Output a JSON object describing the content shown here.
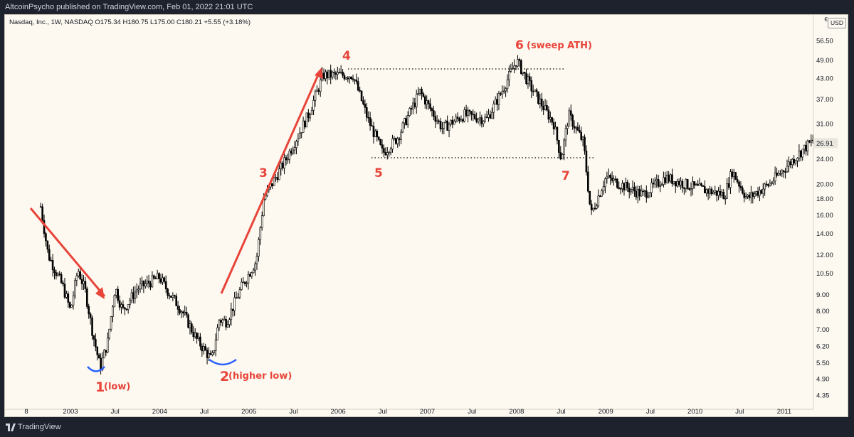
{
  "header": {
    "published": "AltcoinPsycho published on TradingView.com, Feb 01, 2022 21:01 UTC"
  },
  "legend": {
    "text": "Nasdaq, Inc., 1W, NASDAQ  O175.34  H180.75  L175.00  C180.21  +5.55 (+3.18%)"
  },
  "price_axis": {
    "currency": "USD",
    "top_mark": "€",
    "ticks": [
      "56.50",
      "49.00",
      "43.00",
      "37.00",
      "31.00",
      "26.91",
      "24.00",
      "20.00",
      "18.00",
      "16.00",
      "14.00",
      "12.00",
      "10.50",
      "9.00",
      "8.00",
      "7.00",
      "6.20",
      "5.50",
      "4.90",
      "4.35"
    ],
    "last_price": "26.91"
  },
  "time_axis": {
    "ticks": [
      "8",
      "2003",
      "Jul",
      "2004",
      "Jul",
      "2005",
      "Jul",
      "2006",
      "Jul",
      "2007",
      "Jul",
      "2008",
      "Jul",
      "2009",
      "Jul",
      "2010",
      "Jul",
      "2011"
    ]
  },
  "annotations": {
    "n1": "1",
    "n1_label": "(low)",
    "n2": "2",
    "n2_label": "(higher low)",
    "n3": "3",
    "n4": "4",
    "n5": "5",
    "n6": "6",
    "n6_label": "(sweep ATH)",
    "n7": "7"
  },
  "footer": {
    "brand": "TradingView"
  },
  "colors": {
    "background": "#fdf9f0",
    "candles": "#000000",
    "annotation": "#e8443a",
    "arc": "#2962ff"
  },
  "chart_data": {
    "type": "candlestick",
    "instrument": "Nasdaq, Inc.",
    "timeframe": "1W",
    "y_scale": "log",
    "ylim": [
      4.35,
      56.5
    ],
    "open": 175.34,
    "high": 180.75,
    "low": 175.0,
    "close": 180.21,
    "change": "+5.55 (+3.18%)",
    "waypoints": [
      {
        "x": "2002-09",
        "y": 17.0
      },
      {
        "x": "2002-10",
        "y": 12.0
      },
      {
        "x": "2002-12",
        "y": 9.5
      },
      {
        "x": "2003-01",
        "y": 8.0
      },
      {
        "x": "2003-02",
        "y": 10.8
      },
      {
        "x": "2003-03",
        "y": 9.2
      },
      {
        "x": "2003-04",
        "y": 6.8
      },
      {
        "x": "2003-05",
        "y": 5.3
      },
      {
        "x": "2003-06",
        "y": 6.4
      },
      {
        "x": "2003-07",
        "y": 9.5
      },
      {
        "x": "2003-08",
        "y": 8.0
      },
      {
        "x": "2003-10",
        "y": 9.4
      },
      {
        "x": "2004-01",
        "y": 10.2
      },
      {
        "x": "2004-02",
        "y": 9.3
      },
      {
        "x": "2004-04",
        "y": 8.0
      },
      {
        "x": "2004-06",
        "y": 6.5
      },
      {
        "x": "2004-08",
        "y": 5.6
      },
      {
        "x": "2004-09",
        "y": 7.5
      },
      {
        "x": "2004-10",
        "y": 7.4
      },
      {
        "x": "2004-12",
        "y": 9.5
      },
      {
        "x": "2005-02",
        "y": 11.5
      },
      {
        "x": "2005-03",
        "y": 18.0
      },
      {
        "x": "2005-06",
        "y": 24.0
      },
      {
        "x": "2005-09",
        "y": 33.0
      },
      {
        "x": "2005-11",
        "y": 44.0
      },
      {
        "x": "2006-03",
        "y": 44.0
      },
      {
        "x": "2006-05",
        "y": 32.0
      },
      {
        "x": "2006-07",
        "y": 25.0
      },
      {
        "x": "2006-09",
        "y": 28.0
      },
      {
        "x": "2006-12",
        "y": 39.0
      },
      {
        "x": "2007-03",
        "y": 30.0
      },
      {
        "x": "2007-06",
        "y": 33.0
      },
      {
        "x": "2007-09",
        "y": 32.0
      },
      {
        "x": "2007-11",
        "y": 39.0
      },
      {
        "x": "2008-01",
        "y": 49.0
      },
      {
        "x": "2008-03",
        "y": 40.0
      },
      {
        "x": "2008-06",
        "y": 31.0
      },
      {
        "x": "2008-07",
        "y": 24.0
      },
      {
        "x": "2008-08",
        "y": 33.0
      },
      {
        "x": "2008-10",
        "y": 27.0
      },
      {
        "x": "2008-11",
        "y": 16.0
      },
      {
        "x": "2009-01",
        "y": 21.0
      },
      {
        "x": "2009-06",
        "y": 18.5
      },
      {
        "x": "2009-09",
        "y": 21.0
      },
      {
        "x": "2010-01",
        "y": 19.5
      },
      {
        "x": "2010-05",
        "y": 18.5
      },
      {
        "x": "2010-06",
        "y": 22.0
      },
      {
        "x": "2010-08",
        "y": 18.0
      },
      {
        "x": "2010-11",
        "y": 20.0
      },
      {
        "x": "2011-03",
        "y": 25.0
      },
      {
        "x": "2011-06",
        "y": 29.0
      },
      {
        "x": "2011-08",
        "y": 26.9
      }
    ],
    "levels": [
      {
        "name": "ath-line",
        "y": 46.0
      },
      {
        "name": "support-line",
        "y": 24.2
      }
    ]
  }
}
